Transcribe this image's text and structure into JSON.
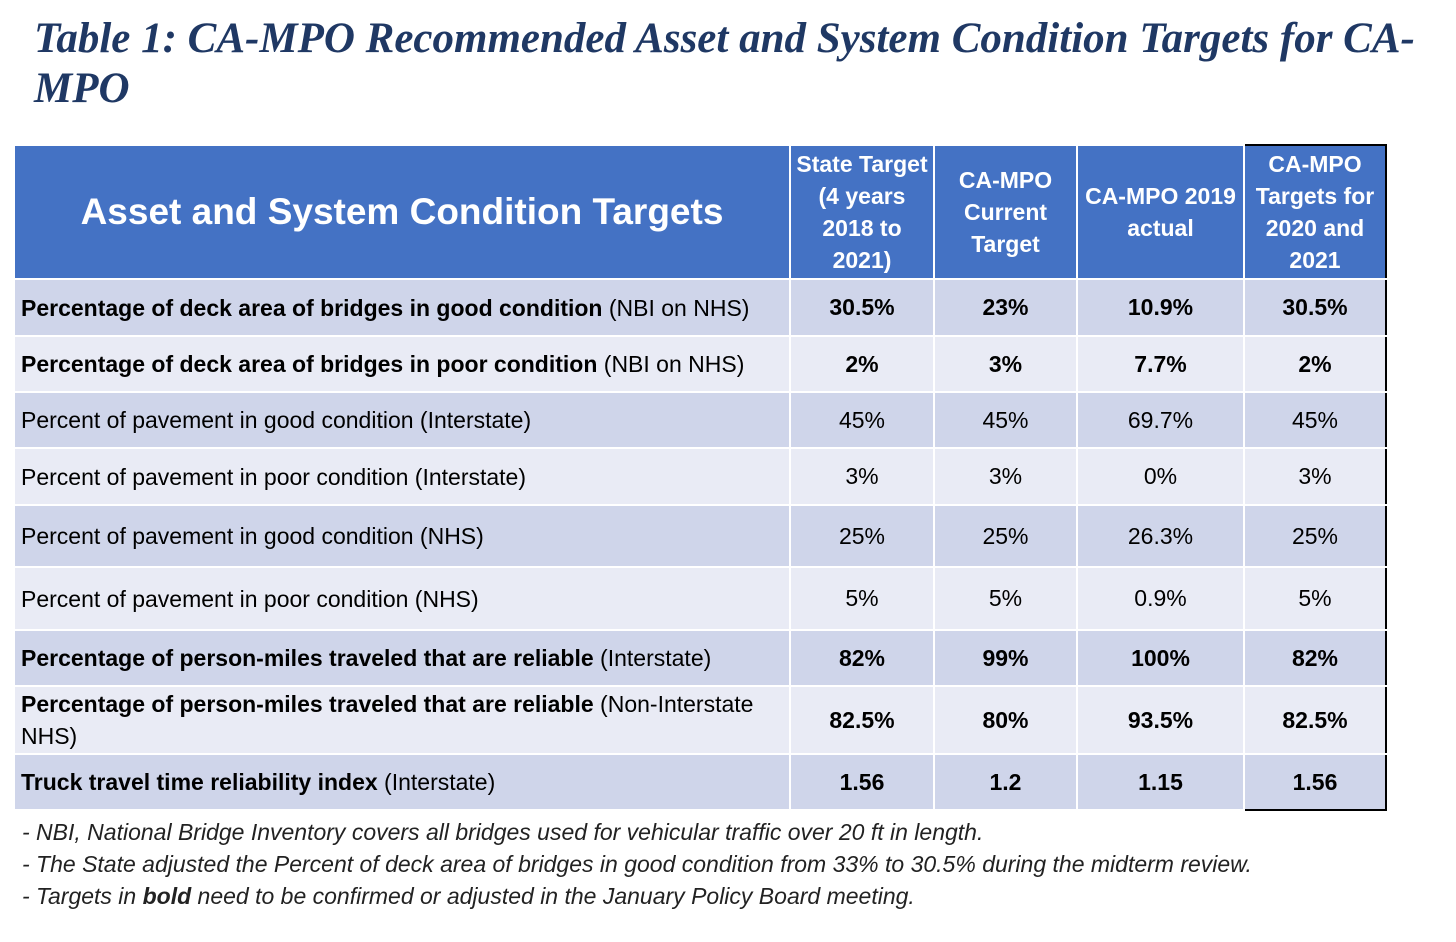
{
  "title": {
    "prefix": "Table 1: CA-MPO ",
    "emphasis": "Recommended",
    "suffix": " Asset and System Condition Targets for CA-MPO"
  },
  "table": {
    "headers": [
      "Asset and System Condition Targets",
      "State Target (4 years 2018 to 2021)",
      "CA-MPO Current Target",
      "CA-MPO 2019 actual",
      "CA-MPO Targets for 2020 and 2021"
    ],
    "rows": [
      {
        "label_bold": "Percentage of deck area of bridges in good condition",
        "label_rest": " (NBI on NHS)",
        "values": [
          "30.5%",
          "23%",
          "10.9%",
          "30.5%"
        ],
        "bold": true
      },
      {
        "label_bold": "Percentage of deck area of bridges in poor condition",
        "label_rest": " (NBI on NHS)",
        "values": [
          "2%",
          "3%",
          "7.7%",
          "2%"
        ],
        "bold": true
      },
      {
        "label_bold": "",
        "label_rest": "Percent of pavement in good condition (Interstate)",
        "values": [
          "45%",
          "45%",
          "69.7%",
          "45%"
        ],
        "bold": false
      },
      {
        "label_bold": "",
        "label_rest": "Percent of pavement in poor condition (Interstate)",
        "values": [
          "3%",
          "3%",
          "0%",
          "3%"
        ],
        "bold": false
      },
      {
        "label_bold": "",
        "label_rest": "Percent of pavement in good condition (NHS)",
        "values": [
          "25%",
          "25%",
          "26.3%",
          "25%"
        ],
        "bold": false
      },
      {
        "label_bold": "",
        "label_rest": "Percent of pavement in poor condition (NHS)",
        "values": [
          "5%",
          "5%",
          "0.9%",
          "5%"
        ],
        "bold": false
      },
      {
        "label_bold": "Percentage of person-miles traveled that are reliable",
        "label_rest": " (Interstate)",
        "values": [
          "82%",
          "99%",
          "100%",
          "82%"
        ],
        "bold": true
      },
      {
        "label_bold": "Percentage of person-miles traveled that are reliable",
        "label_rest": " (Non-Interstate NHS)",
        "values": [
          "82.5%",
          "80%",
          "93.5%",
          "82.5%"
        ],
        "bold": true
      },
      {
        "label_bold": "Truck travel time reliability index",
        "label_rest": " (Interstate)",
        "values": [
          "1.56",
          "1.2",
          "1.15",
          "1.56"
        ],
        "bold": true
      }
    ]
  },
  "notes": {
    "note1": "- NBI, National Bridge Inventory covers all bridges used for vehicular traffic over 20 ft in length.",
    "note2": "- The State adjusted the Percent of deck area of bridges in good condition from 33% to 30.5% during the midterm review.",
    "note3_prefix": "- Targets in ",
    "note3_bold": "bold",
    "note3_suffix": " need to be confirmed or adjusted in the January Policy Board meeting."
  },
  "colors": {
    "title": "#1f3864",
    "header_bg": "#4472c4",
    "row_dark": "#cfd5ea",
    "row_light": "#e9ebf5"
  }
}
